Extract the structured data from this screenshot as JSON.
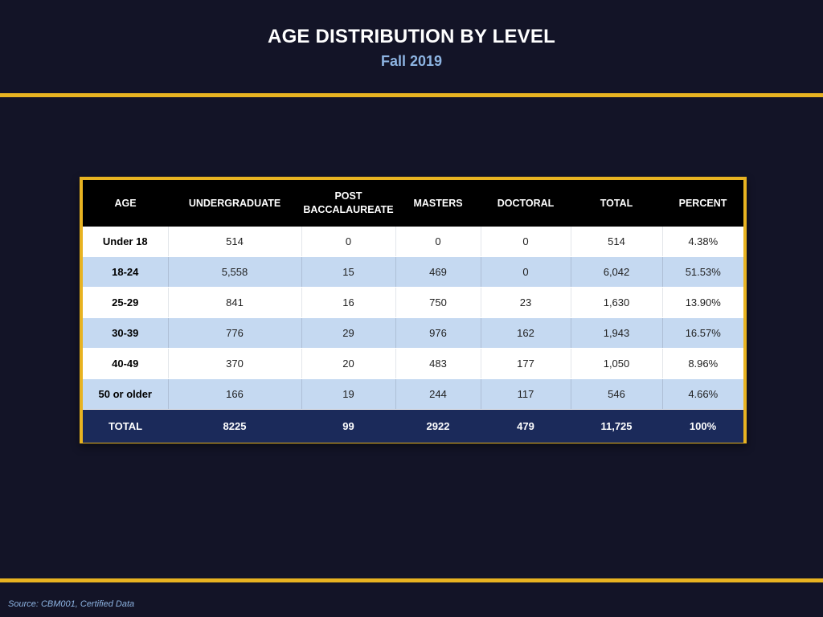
{
  "title": "AGE DISTRIBUTION BY LEVEL",
  "subtitle": "Fall 2019",
  "source": "Source: CBM001, Certified Data",
  "colors": {
    "background": "#131427",
    "accent": "#e8b321",
    "subtitle": "#8db4e2",
    "header_bg": "#000000",
    "alt_row": "#c5d9f1",
    "total_row": "#1b2a5a"
  },
  "table": {
    "headers": [
      "AGE",
      "UNDERGRADUATE",
      "POST BACCALAUREATE",
      "MASTERS",
      "DOCTORAL",
      "TOTAL",
      "PERCENT"
    ],
    "rows": [
      [
        "Under 18",
        "514",
        "0",
        "0",
        "0",
        "514",
        "4.38%"
      ],
      [
        "18-24",
        "5,558",
        "15",
        "469",
        "0",
        "6,042",
        "51.53%"
      ],
      [
        "25-29",
        "841",
        "16",
        "750",
        "23",
        "1,630",
        "13.90%"
      ],
      [
        "30-39",
        "776",
        "29",
        "976",
        "162",
        "1,943",
        "16.57%"
      ],
      [
        "40-49",
        "370",
        "20",
        "483",
        "177",
        "1,050",
        "8.96%"
      ],
      [
        "50 or older",
        "166",
        "19",
        "244",
        "117",
        "546",
        "4.66%"
      ]
    ],
    "total": [
      "TOTAL",
      "8225",
      "99",
      "2922",
      "479",
      "11,725",
      "100%"
    ]
  }
}
